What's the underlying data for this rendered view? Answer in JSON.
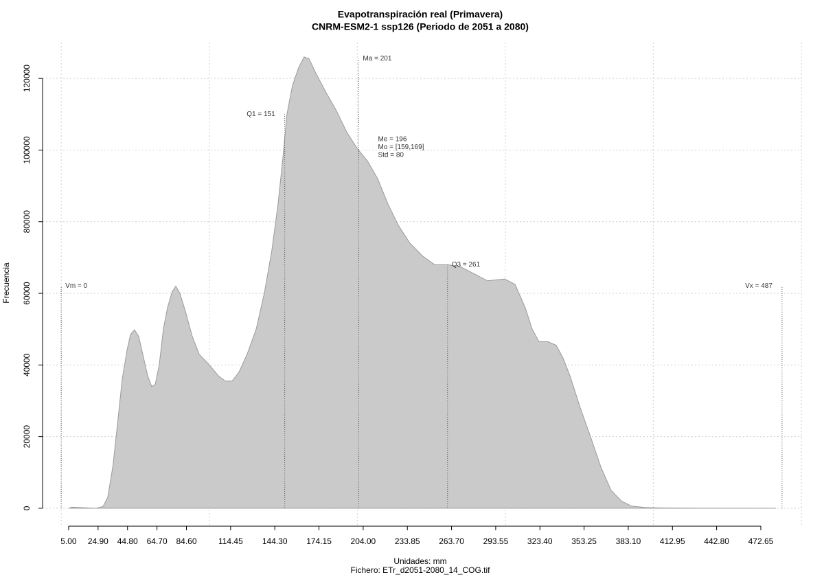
{
  "chart_data": {
    "type": "area",
    "title": "Evapotranspiración real (Primavera)",
    "subtitle": "CNRM-ESM2-1 ssp126 (Periodo de 2051 a 2080)",
    "x_label": "Unidades: mm",
    "file_label": "Fichero: ETr_d2051-2080_14_COG.tif",
    "y_label": "Frecuencia",
    "color": "#cacaca",
    "line_color": "#9a9a9a",
    "x": [
      5,
      7.3,
      12,
      23.6,
      28.2,
      31.4,
      35,
      38.4,
      41.2,
      44.4,
      46.8,
      49.5,
      52.3,
      55.1,
      58.4,
      61.1,
      63.5,
      66.2,
      69,
      71.8,
      75,
      77.4,
      80.2,
      83.9,
      88.5,
      93.2,
      100.1,
      106.1,
      110.8,
      115.4,
      120.1,
      125.6,
      131.7,
      137.2,
      142.3,
      146.5,
      149.8,
      152.5,
      156.2,
      160.4,
      164.1,
      167.4,
      172,
      179,
      185.9,
      192.9,
      199.9,
      206.8,
      213.8,
      220.7,
      227.7,
      235.6,
      243.9,
      252.3,
      261.1,
      269.5,
      278.7,
      288,
      299.6,
      306.6,
      313.5,
      318.2,
      322.8,
      328.8,
      334.4,
      339,
      343.7,
      350.7,
      357.6,
      364.6,
      371.5,
      378.5,
      385.4,
      394.7,
      404,
      422.6,
      482.9
    ],
    "values": [
      0,
      300,
      200,
      0,
      500,
      3000,
      12000,
      25000,
      36000,
      44000,
      48500,
      49800,
      48000,
      43000,
      37000,
      34000,
      34500,
      40000,
      50000,
      56000,
      60500,
      62000,
      60000,
      55000,
      48000,
      43000,
      40000,
      37000,
      35500,
      35500,
      38000,
      43000,
      50000,
      60000,
      72000,
      85000,
      98000,
      110000,
      118000,
      123000,
      126000,
      125500,
      121500,
      116000,
      111000,
      105000,
      100500,
      97000,
      92000,
      85000,
      79000,
      74000,
      70500,
      68000,
      68000,
      67500,
      65500,
      63500,
      64000,
      62500,
      56000,
      50000,
      46500,
      46500,
      45500,
      42000,
      37000,
      28000,
      20000,
      11500,
      5000,
      2000,
      600,
      200,
      100,
      50,
      0
    ],
    "xlim": [
      -12.6,
      500.5
    ],
    "ylim": [
      -5000,
      130000
    ],
    "xticks": [
      {
        "value": 5,
        "label": "5.00"
      },
      {
        "value": 24.9,
        "label": "24.90"
      },
      {
        "value": 44.8,
        "label": "44.80"
      },
      {
        "value": 64.7,
        "label": "64.70"
      },
      {
        "value": 84.6,
        "label": "84.60"
      },
      {
        "value": 114.45,
        "label": "114.45"
      },
      {
        "value": 144.3,
        "label": "144.30"
      },
      {
        "value": 174.15,
        "label": "174.15"
      },
      {
        "value": 204,
        "label": "204.00"
      },
      {
        "value": 233.85,
        "label": "233.85"
      },
      {
        "value": 263.7,
        "label": "263.70"
      },
      {
        "value": 293.55,
        "label": "293.55"
      },
      {
        "value": 323.4,
        "label": "323.40"
      },
      {
        "value": 353.25,
        "label": "353.25"
      },
      {
        "value": 383.1,
        "label": "383.10"
      },
      {
        "value": 412.95,
        "label": "412.95"
      },
      {
        "value": 442.8,
        "label": "442.80"
      },
      {
        "value": 472.65,
        "label": "472.65"
      }
    ],
    "yticks": [
      0,
      20000,
      40000,
      60000,
      80000,
      100000,
      120000
    ],
    "xgrid": [
      0,
      100,
      200,
      300,
      400,
      500
    ],
    "grid": true,
    "annotations": [
      {
        "text": "Vm = 0",
        "x": 0,
        "y": 62000,
        "side": "right"
      },
      {
        "text": "Q1 = 151",
        "x": 151,
        "y": 110000,
        "side": "left"
      },
      {
        "text": "Ma = 201",
        "x": 201,
        "y": 125500,
        "side": "right"
      },
      {
        "text": "Q3 = 261",
        "x": 261,
        "y": 68000,
        "side": "right"
      },
      {
        "text": "Vx = 487",
        "x": 487,
        "y": 62000,
        "side": "left"
      }
    ],
    "stats": {
      "lines": [
        "Me = 196",
        "Mo = [159,169]",
        "Std = 80"
      ],
      "x": 214,
      "y": 103000
    }
  }
}
